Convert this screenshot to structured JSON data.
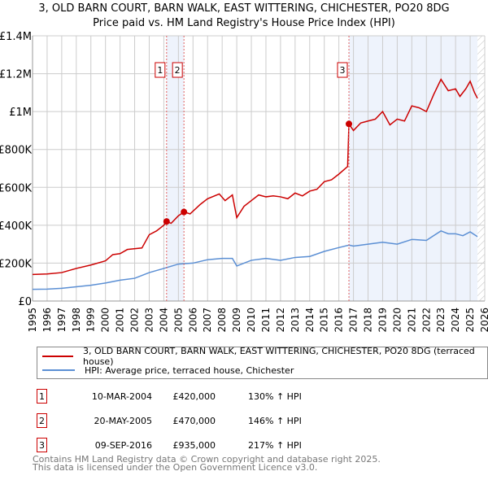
{
  "chart_data": {
    "type": "line",
    "title": "3, OLD BARN COURT, BARN WALK, EAST WITTERING, CHICHESTER, PO20 8DG",
    "subtitle": "Price paid vs. HM Land Registry's House Price Index (HPI)",
    "xlim": [
      1995,
      2026
    ],
    "ylim": [
      0,
      1400000
    ],
    "x_ticks": [
      "1995",
      "1996",
      "1997",
      "1998",
      "1999",
      "2000",
      "2001",
      "2002",
      "2003",
      "2004",
      "2005",
      "2006",
      "2007",
      "2008",
      "2009",
      "2010",
      "2011",
      "2012",
      "2013",
      "2014",
      "2015",
      "2016",
      "2017",
      "2018",
      "2019",
      "2020",
      "2021",
      "2022",
      "2023",
      "2024",
      "2025",
      "2026"
    ],
    "y_ticks": [
      {
        "v": 0,
        "l": "£0"
      },
      {
        "v": 200000,
        "l": "£200K"
      },
      {
        "v": 400000,
        "l": "£400K"
      },
      {
        "v": 600000,
        "l": "£600K"
      },
      {
        "v": 800000,
        "l": "£800K"
      },
      {
        "v": 1000000,
        "l": "£1M"
      },
      {
        "v": 1200000,
        "l": "£1.2M"
      },
      {
        "v": 1400000,
        "l": "£1.4M"
      }
    ],
    "grid": true,
    "series": [
      {
        "name": "3, OLD BARN COURT, BARN WALK, EAST WITTERING, CHICHESTER, PO20 8DG (terraced house)",
        "color": "#cc0000",
        "x": [
          1995,
          1996,
          1997,
          1998,
          1999,
          2000,
          2000.5,
          2001,
          2001.5,
          2002.5,
          2003,
          2003.5,
          2004,
          2004.19,
          2004.5,
          2005,
          2005.38,
          2005.8,
          2006.5,
          2007,
          2007.8,
          2008.2,
          2008.7,
          2009,
          2009.5,
          2010,
          2010.5,
          2011,
          2011.5,
          2012,
          2012.5,
          2013,
          2013.5,
          2014,
          2014.5,
          2015,
          2015.5,
          2016,
          2016.6,
          2016.69,
          2017,
          2017.5,
          2018,
          2018.5,
          2019,
          2019.5,
          2020,
          2020.5,
          2021,
          2021.5,
          2022,
          2022.5,
          2023,
          2023.5,
          2024,
          2024.3,
          2024.7,
          2025,
          2025.3,
          2025.5
        ],
        "y": [
          140000,
          143000,
          150000,
          172000,
          190000,
          212000,
          245000,
          250000,
          272000,
          280000,
          350000,
          370000,
          400000,
          420000,
          410000,
          450000,
          470000,
          460000,
          510000,
          540000,
          565000,
          530000,
          560000,
          440000,
          500000,
          530000,
          560000,
          550000,
          555000,
          550000,
          540000,
          570000,
          555000,
          580000,
          590000,
          630000,
          640000,
          670000,
          710000,
          935000,
          900000,
          940000,
          950000,
          960000,
          1000000,
          930000,
          960000,
          950000,
          1030000,
          1020000,
          1000000,
          1090000,
          1170000,
          1110000,
          1120000,
          1080000,
          1120000,
          1160000,
          1100000,
          1070000
        ]
      },
      {
        "name": "HPI: Average price, terraced house, Chichester",
        "color": "#5b8fd4",
        "x": [
          1995,
          1996,
          1997,
          1998,
          1999,
          2000,
          2001,
          2002,
          2003,
          2004,
          2005,
          2006,
          2007,
          2008,
          2008.7,
          2009,
          2010,
          2011,
          2012,
          2013,
          2014,
          2015,
          2016,
          2016.7,
          2017,
          2018,
          2019,
          2020,
          2021,
          2022,
          2022.5,
          2023,
          2023.5,
          2024,
          2024.5,
          2025,
          2025.5
        ],
        "y": [
          62000,
          63000,
          67000,
          75000,
          83000,
          95000,
          110000,
          120000,
          150000,
          172000,
          195000,
          200000,
          218000,
          225000,
          225000,
          185000,
          215000,
          225000,
          215000,
          230000,
          235000,
          262000,
          282000,
          295000,
          290000,
          300000,
          310000,
          300000,
          325000,
          320000,
          345000,
          370000,
          355000,
          355000,
          345000,
          365000,
          340000
        ]
      }
    ],
    "sales": [
      {
        "n": "1",
        "x": 2004.19,
        "price": 420000,
        "date": "10-MAR-2004",
        "price_label": "£420,000",
        "hpi": "130% ↑ HPI"
      },
      {
        "n": "2",
        "x": 2005.38,
        "price": 470000,
        "date": "20-MAY-2005",
        "price_label": "£470,000",
        "hpi": "146% ↑ HPI"
      },
      {
        "n": "3",
        "x": 2016.69,
        "price": 935000,
        "date": "09-SEP-2016",
        "price_label": "£935,000",
        "hpi": "217% ↑ HPI"
      }
    ],
    "shaded": [
      [
        2004.19,
        2005.38
      ],
      [
        2016.69,
        2025.5
      ]
    ],
    "hatched_from": 2025.5
  },
  "footer": {
    "line1": "Contains HM Land Registry data © Crown copyright and database right 2025.",
    "line2": "This data is licensed under the Open Government Licence v3.0."
  }
}
